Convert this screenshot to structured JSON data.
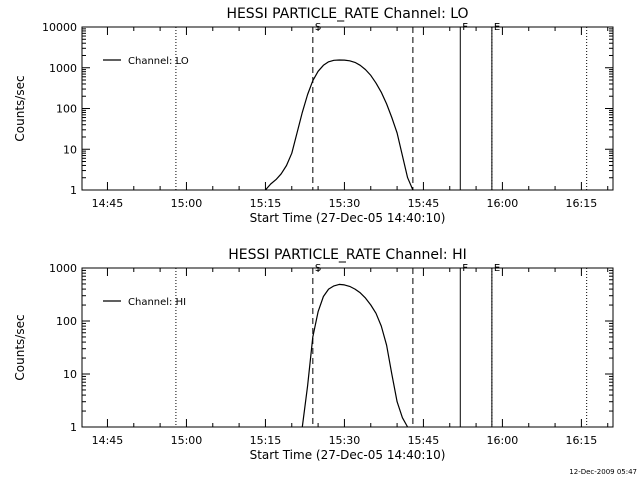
{
  "chart_data": [
    {
      "type": "line",
      "title": "HESSI PARTICLE_RATE Channel: LO",
      "xlabel": "Start Time (27-Dec-05 14:40:10)",
      "ylabel": "Counts/sec",
      "y_scale": "log",
      "ylim": [
        1,
        10000
      ],
      "y_ticks": [
        1,
        10,
        100,
        1000,
        10000
      ],
      "y_tick_labels": [
        "1",
        "10",
        "100",
        "1000",
        "10000"
      ],
      "xlim": [
        "14:40:10",
        "16:21:00"
      ],
      "x_ticks": [
        "14:45",
        "15:00",
        "15:15",
        "15:30",
        "15:45",
        "16:00",
        "16:15"
      ],
      "grid": false,
      "legend": {
        "position": "top-left",
        "entries": [
          "Channel: LO"
        ]
      },
      "series": [
        {
          "name": "Channel: LO",
          "x": [
            "15:15",
            "15:16",
            "15:17",
            "15:18",
            "15:19",
            "15:20",
            "15:21",
            "15:22",
            "15:23",
            "15:24",
            "15:25",
            "15:26",
            "15:27",
            "15:28",
            "15:29",
            "15:30",
            "15:31",
            "15:32",
            "15:33",
            "15:34",
            "15:35",
            "15:36",
            "15:37",
            "15:38",
            "15:39",
            "15:40",
            "15:41",
            "15:42",
            "15:43"
          ],
          "values": [
            1,
            1.4,
            1.8,
            2.5,
            4,
            8,
            25,
            80,
            220,
            480,
            820,
            1150,
            1400,
            1520,
            1550,
            1540,
            1480,
            1350,
            1150,
            900,
            650,
            420,
            250,
            130,
            60,
            25,
            7,
            2,
            1
          ]
        }
      ],
      "markers": [
        {
          "label": "S",
          "time": "15:24",
          "style": "dashed"
        },
        {
          "label": "",
          "time": "15:43",
          "style": "dashed"
        },
        {
          "label": "F",
          "time": "15:52",
          "style": "solid"
        },
        {
          "label": "E",
          "time": "15:58",
          "style": "solid"
        },
        {
          "label": "",
          "time": "14:58",
          "style": "dotted"
        },
        {
          "label": "",
          "time": "15:58",
          "style": "dotted"
        },
        {
          "label": "",
          "time": "16:16",
          "style": "dotted"
        }
      ]
    },
    {
      "type": "line",
      "title": "HESSI PARTICLE_RATE Channel: HI",
      "xlabel": "Start Time (27-Dec-05 14:40:10)",
      "ylabel": "Counts/sec",
      "y_scale": "log",
      "ylim": [
        1,
        1000
      ],
      "y_ticks": [
        1,
        10,
        100,
        1000
      ],
      "y_tick_labels": [
        "1",
        "10",
        "100",
        "1000"
      ],
      "xlim": [
        "14:40:10",
        "16:21:00"
      ],
      "x_ticks": [
        "14:45",
        "15:00",
        "15:15",
        "15:30",
        "15:45",
        "16:00",
        "16:15"
      ],
      "grid": false,
      "legend": {
        "position": "top-left",
        "entries": [
          "Channel: HI"
        ]
      },
      "series": [
        {
          "name": "Channel: HI",
          "x": [
            "15:22",
            "15:23",
            "15:24",
            "15:25",
            "15:26",
            "15:27",
            "15:28",
            "15:29",
            "15:30",
            "15:31",
            "15:32",
            "15:33",
            "15:34",
            "15:35",
            "15:36",
            "15:37",
            "15:38",
            "15:39",
            "15:40",
            "15:41",
            "15:42"
          ],
          "values": [
            1,
            6,
            50,
            150,
            290,
            400,
            460,
            490,
            480,
            450,
            400,
            340,
            270,
            200,
            140,
            80,
            35,
            10,
            3,
            1.5,
            1
          ]
        }
      ],
      "markers": [
        {
          "label": "S",
          "time": "15:24",
          "style": "dashed"
        },
        {
          "label": "",
          "time": "15:43",
          "style": "dashed"
        },
        {
          "label": "F",
          "time": "15:52",
          "style": "solid"
        },
        {
          "label": "E",
          "time": "15:58",
          "style": "solid"
        },
        {
          "label": "",
          "time": "14:58",
          "style": "dotted"
        },
        {
          "label": "",
          "time": "15:58",
          "style": "dotted"
        },
        {
          "label": "",
          "time": "16:16",
          "style": "dotted"
        }
      ]
    }
  ],
  "footer": {
    "timestamp": "12-Dec-2009 05:47"
  }
}
